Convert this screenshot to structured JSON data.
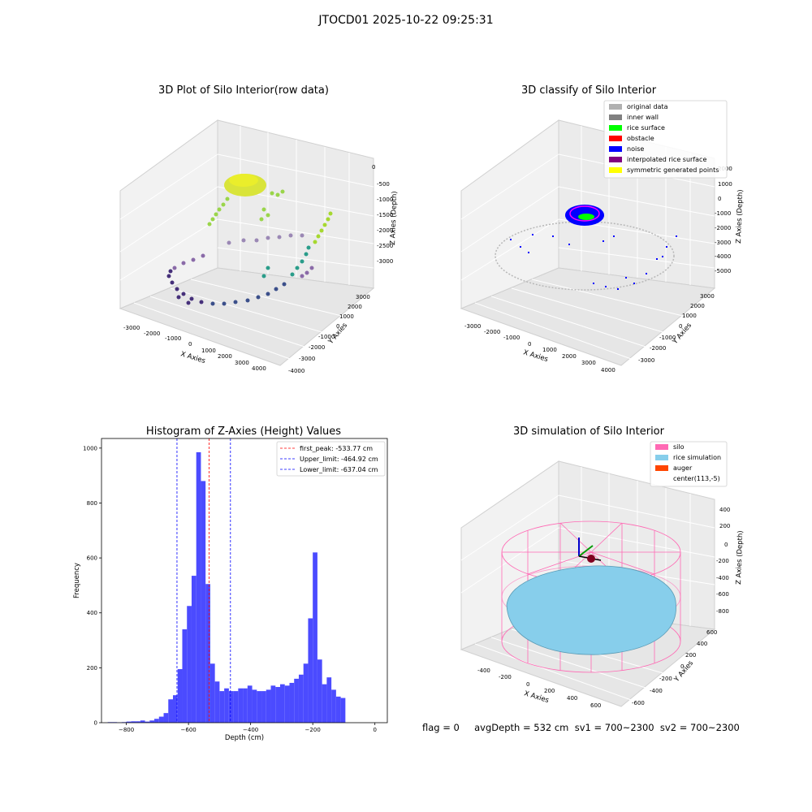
{
  "figure": {
    "suptitle": "JTOCD01 2025-10-22 09:25:31"
  },
  "panels": {
    "raw": {
      "title": "3D Plot of Silo Interior(row data)",
      "xlabel": "X Axies",
      "ylabel": "Y Axies",
      "zlabel": "Z Axies (Depth)",
      "xticks": [
        "-3000",
        "-2000",
        "-1000",
        "0",
        "1000",
        "2000",
        "3000",
        "4000"
      ],
      "yticks": [
        "-4000",
        "-3000",
        "-2000",
        "-1000",
        "0",
        "1000",
        "2000",
        "3000"
      ],
      "zticks": [
        "0",
        "-500",
        "-1000",
        "-1500",
        "-2000",
        "-2500",
        "-3000"
      ]
    },
    "classify": {
      "title": "3D classify of Silo Interior",
      "xlabel": "X Axies",
      "ylabel": "Y Axies",
      "zlabel": "Z Axies (Depth)",
      "xticks": [
        "-3000",
        "-2000",
        "-1000",
        "0",
        "1000",
        "2000",
        "3000",
        "4000"
      ],
      "yticks": [
        "-3000",
        "-2000",
        "-1000",
        "0",
        "1000",
        "2000",
        "3000"
      ],
      "zticks": [
        "2000",
        "1000",
        "0",
        "-1000",
        "-2000",
        "-3000",
        "-4000",
        "-5000"
      ],
      "legend": [
        {
          "label": "original data",
          "color": "#b0b0b0"
        },
        {
          "label": "inner wall",
          "color": "#808080"
        },
        {
          "label": "rice surface",
          "color": "#00ff00"
        },
        {
          "label": "obstacle",
          "color": "#ff0000"
        },
        {
          "label": "noise",
          "color": "#0000ff"
        },
        {
          "label": "interpolated rice surface",
          "color": "#800080"
        },
        {
          "label": "symmetric generated points",
          "color": "#ffff00"
        }
      ]
    },
    "simulation": {
      "title": "3D simulation of Silo Interior",
      "xlabel": "X Axies",
      "ylabel": "Y Axies",
      "zlabel": "Z Axies (Depth)",
      "xticks": [
        "-400",
        "-200",
        "0",
        "200",
        "400",
        "600"
      ],
      "yticks": [
        "-600",
        "-400",
        "-200",
        "0",
        "200",
        "400",
        "600"
      ],
      "zticks": [
        "400",
        "200",
        "0",
        "-200",
        "-400",
        "-600",
        "-800"
      ],
      "legend": [
        {
          "label": "silo",
          "color": "#ff69b4"
        },
        {
          "label": "rice simulation",
          "color": "#87ceeb"
        },
        {
          "label": "auger",
          "color": "#ff4500"
        },
        {
          "label": "center(113,-5)",
          "color": ""
        }
      ]
    }
  },
  "stats": {
    "text": "flag = 0     avgDepth = 532 cm  sv1 = 700~2300  sv2 = 700~2300"
  },
  "chart_data": [
    {
      "type": "bar",
      "title": "Histogram of Z-Axies (Height) Values",
      "xlabel": "Depth (cm)",
      "ylabel": "Frequency",
      "xlim": [
        -880,
        40
      ],
      "ylim": [
        0,
        1035
      ],
      "grid": false,
      "legend_position": "top-right",
      "xticks": [
        -800,
        -600,
        -400,
        -200,
        0
      ],
      "yticks": [
        0,
        200,
        400,
        600,
        800,
        1000
      ],
      "bins": [
        {
          "x0": -860,
          "x1": -845,
          "y": 2
        },
        {
          "x0": -845,
          "x1": -830,
          "y": 2
        },
        {
          "x0": -830,
          "x1": -815,
          "y": 1
        },
        {
          "x0": -815,
          "x1": -800,
          "y": 2
        },
        {
          "x0": -800,
          "x1": -785,
          "y": 4
        },
        {
          "x0": -785,
          "x1": -770,
          "y": 5
        },
        {
          "x0": -770,
          "x1": -755,
          "y": 5
        },
        {
          "x0": -755,
          "x1": -740,
          "y": 8
        },
        {
          "x0": -740,
          "x1": -725,
          "y": 4
        },
        {
          "x0": -725,
          "x1": -710,
          "y": 8
        },
        {
          "x0": -710,
          "x1": -695,
          "y": 14
        },
        {
          "x0": -695,
          "x1": -680,
          "y": 22
        },
        {
          "x0": -680,
          "x1": -665,
          "y": 35
        },
        {
          "x0": -665,
          "x1": -650,
          "y": 85
        },
        {
          "x0": -650,
          "x1": -635,
          "y": 100
        },
        {
          "x0": -635,
          "x1": -620,
          "y": 195
        },
        {
          "x0": -620,
          "x1": -605,
          "y": 340
        },
        {
          "x0": -605,
          "x1": -590,
          "y": 425
        },
        {
          "x0": -590,
          "x1": -575,
          "y": 535
        },
        {
          "x0": -575,
          "x1": -560,
          "y": 985
        },
        {
          "x0": -560,
          "x1": -545,
          "y": 880
        },
        {
          "x0": -545,
          "x1": -530,
          "y": 505
        },
        {
          "x0": -530,
          "x1": -515,
          "y": 215
        },
        {
          "x0": -515,
          "x1": -500,
          "y": 150
        },
        {
          "x0": -500,
          "x1": -485,
          "y": 115
        },
        {
          "x0": -485,
          "x1": -470,
          "y": 125
        },
        {
          "x0": -470,
          "x1": -455,
          "y": 115
        },
        {
          "x0": -455,
          "x1": -440,
          "y": 115
        },
        {
          "x0": -440,
          "x1": -425,
          "y": 125
        },
        {
          "x0": -425,
          "x1": -410,
          "y": 125
        },
        {
          "x0": -410,
          "x1": -395,
          "y": 135
        },
        {
          "x0": -395,
          "x1": -380,
          "y": 120
        },
        {
          "x0": -380,
          "x1": -365,
          "y": 115
        },
        {
          "x0": -365,
          "x1": -350,
          "y": 115
        },
        {
          "x0": -350,
          "x1": -335,
          "y": 120
        },
        {
          "x0": -335,
          "x1": -320,
          "y": 135
        },
        {
          "x0": -320,
          "x1": -305,
          "y": 130
        },
        {
          "x0": -305,
          "x1": -290,
          "y": 140
        },
        {
          "x0": -290,
          "x1": -275,
          "y": 135
        },
        {
          "x0": -275,
          "x1": -260,
          "y": 145
        },
        {
          "x0": -260,
          "x1": -245,
          "y": 160
        },
        {
          "x0": -245,
          "x1": -230,
          "y": 175
        },
        {
          "x0": -230,
          "x1": -215,
          "y": 215
        },
        {
          "x0": -215,
          "x1": -200,
          "y": 380
        },
        {
          "x0": -200,
          "x1": -185,
          "y": 620
        },
        {
          "x0": -185,
          "x1": -170,
          "y": 230
        },
        {
          "x0": -170,
          "x1": -155,
          "y": 140
        },
        {
          "x0": -155,
          "x1": -140,
          "y": 165
        },
        {
          "x0": -140,
          "x1": -125,
          "y": 120
        },
        {
          "x0": -125,
          "x1": -110,
          "y": 95
        },
        {
          "x0": -110,
          "x1": -95,
          "y": 90
        }
      ],
      "vlines": [
        {
          "name": "first_peak: -533.77 cm",
          "x": -533.77,
          "color": "#ff0000"
        },
        {
          "name": "Upper_limit: -464.92 cm",
          "x": -464.92,
          "color": "#0000ff"
        },
        {
          "name": "Lower_limit: -637.04 cm",
          "x": -637.04,
          "color": "#0000ff"
        }
      ],
      "bar_color": "#4b4bff"
    }
  ]
}
